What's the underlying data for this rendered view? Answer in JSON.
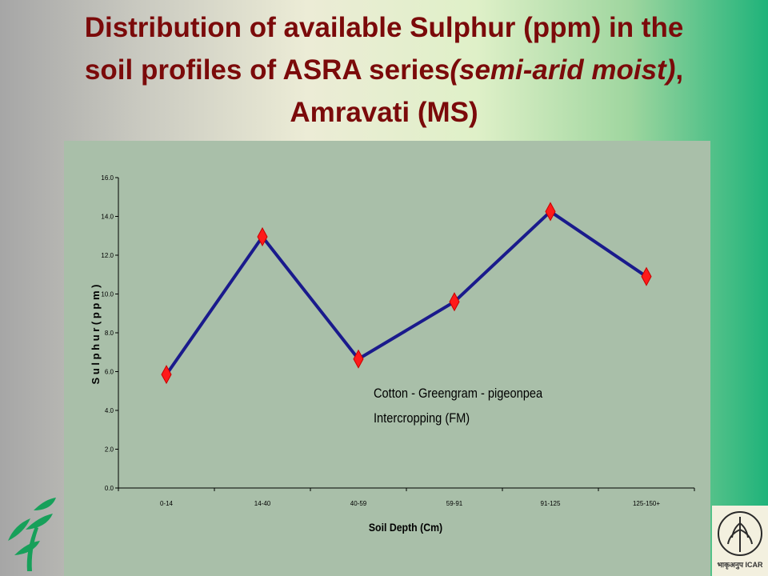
{
  "slide": {
    "title_line1": "Distribution of available Sulphur (ppm) in the",
    "title_line2_regular": "soil profiles of ASRA series",
    "title_line2_italic": "(semi-arid moist)",
    "title_line2_tail": ",",
    "title_line3": "Amravati (MS)",
    "logo_right_text": "भाकृअनुप ICAR"
  },
  "colors": {
    "title": "#7b0a0a",
    "line": "#1a1a8c",
    "marker": "#ff1a1a",
    "panel": "#a9bfa9"
  },
  "chart_data": {
    "type": "line",
    "categories": [
      "0-14",
      "14-40",
      "40-59",
      "59-91",
      "91-125",
      "125-150+"
    ],
    "series": [
      {
        "values": [
          5.85,
          12.95,
          6.65,
          9.6,
          14.25,
          10.9
        ]
      }
    ],
    "xlabel": "Soil Depth (Cm)",
    "ylabel": "S u l p h u r  ( p p m )",
    "yticks": [
      "0.0",
      "2.0",
      "4.0",
      "6.0",
      "8.0",
      "10.0",
      "12.0",
      "14.0",
      "16.0"
    ],
    "ylim": [
      0,
      16
    ],
    "annotation_line1": "Cotton - Greengram - pigeonpea",
    "annotation_line2": "Intercropping (FM)",
    "grid": false,
    "legend": "none"
  }
}
